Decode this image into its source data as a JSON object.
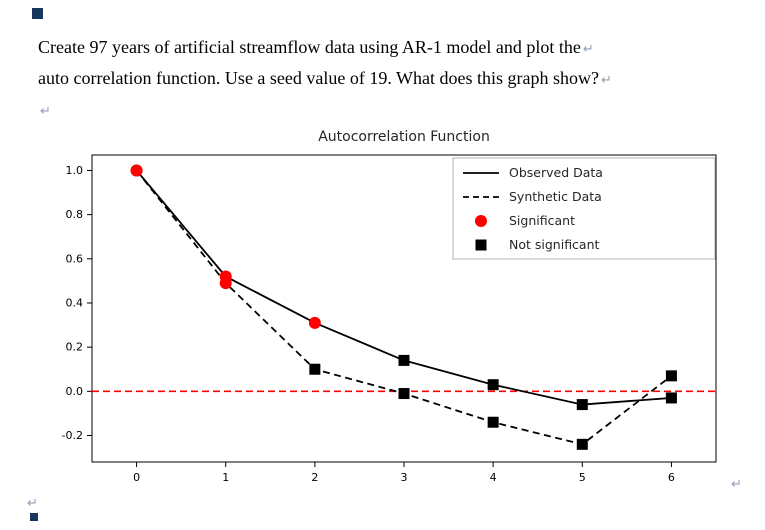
{
  "document": {
    "lines": [
      "Create 97 years of artificial streamflow data using AR-1 model and plot the",
      "auto correlation function. Use a seed value of 19. What does this graph show?"
    ],
    "paragraph_mark": "↵"
  },
  "chart_data": {
    "type": "line",
    "title": "Autocorrelation Function",
    "xlabel": "",
    "ylabel": "",
    "x": [
      0,
      1,
      2,
      3,
      4,
      5,
      6
    ],
    "series": [
      {
        "name": "Observed Data",
        "line_style": "solid",
        "values": [
          1.0,
          0.52,
          0.31,
          0.14,
          0.03,
          -0.06,
          -0.03
        ],
        "significant": [
          true,
          true,
          true,
          false,
          false,
          false,
          false
        ]
      },
      {
        "name": "Synthetic Data",
        "line_style": "dashed",
        "values": [
          1.0,
          0.49,
          0.1,
          -0.01,
          -0.14,
          -0.24,
          0.07
        ],
        "significant": [
          true,
          true,
          false,
          false,
          false,
          false,
          false
        ]
      }
    ],
    "zero_line": {
      "y": 0.0,
      "color": "#ff0000",
      "style": "dashed"
    },
    "marker_colors": {
      "significant": "#ff0000",
      "not_significant": "#000000"
    },
    "line_color": "#000000",
    "legend": [
      {
        "label": "Observed Data",
        "sample": "solid-line"
      },
      {
        "label": "Synthetic Data",
        "sample": "dashed-line"
      },
      {
        "label": "Significant",
        "sample": "red-circle"
      },
      {
        "label": "Not significant",
        "sample": "black-square"
      }
    ],
    "legend_position": "upper right",
    "xticks": [
      0,
      1,
      2,
      3,
      4,
      5,
      6
    ],
    "yticks": [
      1.0,
      0.8,
      0.6,
      0.4,
      0.2,
      0.0,
      -0.2
    ],
    "xlim": [
      -0.5,
      6.5
    ],
    "ylim": [
      -0.32,
      1.07
    ],
    "grid": false
  }
}
